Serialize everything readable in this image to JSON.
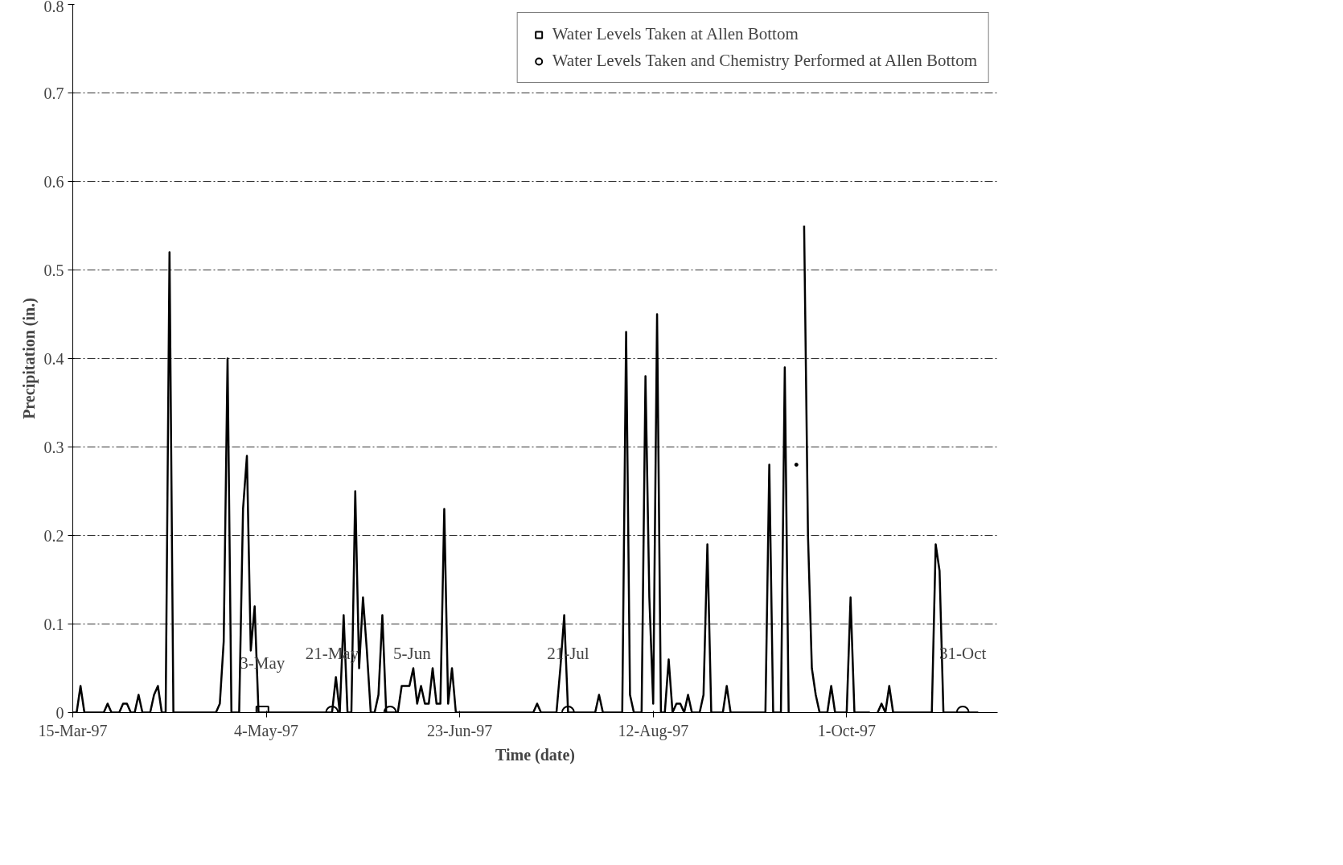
{
  "chart_data": {
    "type": "line",
    "xlabel": "Time (date)",
    "ylabel": "Precipitation (in.)",
    "xlim": [
      "1997-03-15",
      "1997-11-09"
    ],
    "xticks": [
      {
        "value": "1997-03-15",
        "label": "15-Mar-97"
      },
      {
        "value": "1997-05-04",
        "label": "4-May-97"
      },
      {
        "value": "1997-06-23",
        "label": "23-Jun-97"
      },
      {
        "value": "1997-08-12",
        "label": "12-Aug-97"
      },
      {
        "value": "1997-10-01",
        "label": "1-Oct-97"
      }
    ],
    "ylim": [
      0,
      0.8
    ],
    "yticks": [
      0,
      0.1,
      0.2,
      0.3,
      0.4,
      0.5,
      0.6,
      0.7,
      0.8
    ],
    "grid": "y",
    "legend": "top right",
    "series": [
      {
        "color": "#000000",
        "marker": "none",
        "x": [
          "1997-03-15",
          "1997-03-16",
          "1997-03-17",
          "1997-03-18",
          "1997-03-23",
          "1997-03-24",
          "1997-03-25",
          "1997-03-27",
          "1997-03-28",
          "1997-03-29",
          "1997-03-30",
          "1997-03-31",
          "1997-04-01",
          "1997-04-02",
          "1997-04-04",
          "1997-04-05",
          "1997-04-06",
          "1997-04-07",
          "1997-04-08",
          "1997-04-09",
          "1997-04-10",
          "1997-04-21",
          "1997-04-22",
          "1997-04-23",
          "1997-04-24",
          "1997-04-25",
          "1997-04-27",
          "1997-04-28",
          "1997-04-29",
          "1997-04-30",
          "1997-05-01",
          "1997-05-02",
          "1997-05-21",
          "1997-05-22",
          "1997-05-23",
          "1997-05-24",
          "1997-05-25",
          "1997-05-26",
          "1997-05-27",
          "1997-05-28",
          "1997-05-29",
          "1997-05-30",
          "1997-05-31",
          "1997-06-01",
          "1997-06-02",
          "1997-06-03",
          "1997-06-04",
          "1997-06-07",
          "1997-06-08",
          "1997-06-09",
          "1997-06-10",
          "1997-06-11",
          "1997-06-12",
          "1997-06-13",
          "1997-06-14",
          "1997-06-15",
          "1997-06-16",
          "1997-06-17",
          "1997-06-18",
          "1997-06-19",
          "1997-06-20",
          "1997-06-21",
          "1997-06-22",
          "1997-07-12",
          "1997-07-13",
          "1997-07-14",
          "1997-07-18",
          "1997-07-19",
          "1997-07-20",
          "1997-07-21",
          "1997-07-28",
          "1997-07-29",
          "1997-07-30",
          "1997-08-04",
          "1997-08-05",
          "1997-08-06",
          "1997-08-07",
          "1997-08-09",
          "1997-08-10",
          "1997-08-11",
          "1997-08-12",
          "1997-08-13",
          "1997-08-14",
          "1997-08-15",
          "1997-08-16",
          "1997-08-17",
          "1997-08-18",
          "1997-08-19",
          "1997-08-20",
          "1997-08-21",
          "1997-08-22",
          "1997-08-24",
          "1997-08-25",
          "1997-08-26",
          "1997-08-27",
          "1997-08-30",
          "1997-08-31",
          "1997-09-01",
          "1997-09-10",
          "1997-09-11",
          "1997-09-12",
          "1997-09-13",
          "1997-09-14",
          "1997-09-15",
          "1997-09-16",
          "1997-09-17",
          "1997-09-18",
          "1997-09-19",
          "1997-09-20",
          "1997-09-21",
          "1997-09-22",
          "1997-09-23",
          "1997-09-24",
          "1997-09-26",
          "1997-09-27",
          "1997-09-28",
          "1997-10-01",
          "1997-10-02",
          "1997-10-03",
          "1997-10-07",
          "1997-10-08",
          "1997-10-09",
          "1997-10-10",
          "1997-10-11",
          "1997-10-12",
          "1997-10-13",
          "1997-10-23",
          "1997-10-24",
          "1997-10-25",
          "1997-10-26",
          "1997-11-04"
        ],
        "values": [
          0,
          0,
          0.03,
          0,
          0,
          0.01,
          0,
          0,
          0.01,
          0.01,
          0,
          0,
          0.02,
          0,
          0,
          0.02,
          0.03,
          0,
          0,
          0.52,
          0,
          0,
          0.01,
          0.08,
          0.4,
          0,
          0,
          0.23,
          0.29,
          0.07,
          0.12,
          0,
          0,
          0.04,
          0,
          0.11,
          0,
          0,
          0.25,
          0.05,
          0.13,
          0.07,
          0,
          0,
          0.02,
          0.11,
          0,
          0,
          0.03,
          0.03,
          0.03,
          0.05,
          0.01,
          0.03,
          0.01,
          0.01,
          0.05,
          0.01,
          0.01,
          0.23,
          0.01,
          0.05,
          0,
          0,
          0.01,
          0,
          0,
          0.05,
          0.11,
          0,
          0,
          0.02,
          0,
          0,
          0.43,
          0.02,
          0,
          0,
          0.38,
          0.13,
          0.01,
          0.45,
          0,
          0,
          0.06,
          0,
          0.01,
          0.01,
          0,
          0.02,
          0,
          0,
          0.02,
          0.19,
          0,
          0,
          0.03,
          0,
          0,
          0.28,
          0,
          0,
          0,
          0.39,
          0,
          null,
          0.28,
          null,
          0.55,
          0.2,
          0.05,
          0.02,
          0,
          0,
          0.03,
          0,
          0,
          0.13,
          0,
          0,
          null,
          0,
          0.01,
          0,
          0.03,
          0,
          0,
          0.19,
          0.16,
          0,
          0
        ]
      },
      {
        "type": "scatter",
        "name": "Water Levels Taken at Allen Bottom",
        "color": "#000000",
        "marker": "square",
        "x": [
          "1997-05-03"
        ],
        "values": [
          0
        ]
      },
      {
        "type": "scatter",
        "name": "Water Levels Taken and Chemistry Performed at Allen Bottom",
        "color": "#000000",
        "marker": "circle",
        "x": [
          "1997-05-21",
          "1997-06-05",
          "1997-07-21",
          "1997-10-31"
        ],
        "values": [
          0,
          0,
          0,
          0
        ]
      }
    ],
    "annotations": [
      {
        "text": "3-May",
        "x": "1997-05-03",
        "y": 0
      },
      {
        "text": "21-May",
        "x": "1997-05-21",
        "y": 0
      },
      {
        "text": "5-Jun",
        "x": "1997-06-05",
        "y": 0
      },
      {
        "text": "21-Jul",
        "x": "1997-07-21",
        "y": 0
      },
      {
        "text": "31-Oct",
        "x": "1997-10-31",
        "y": 0
      }
    ]
  }
}
